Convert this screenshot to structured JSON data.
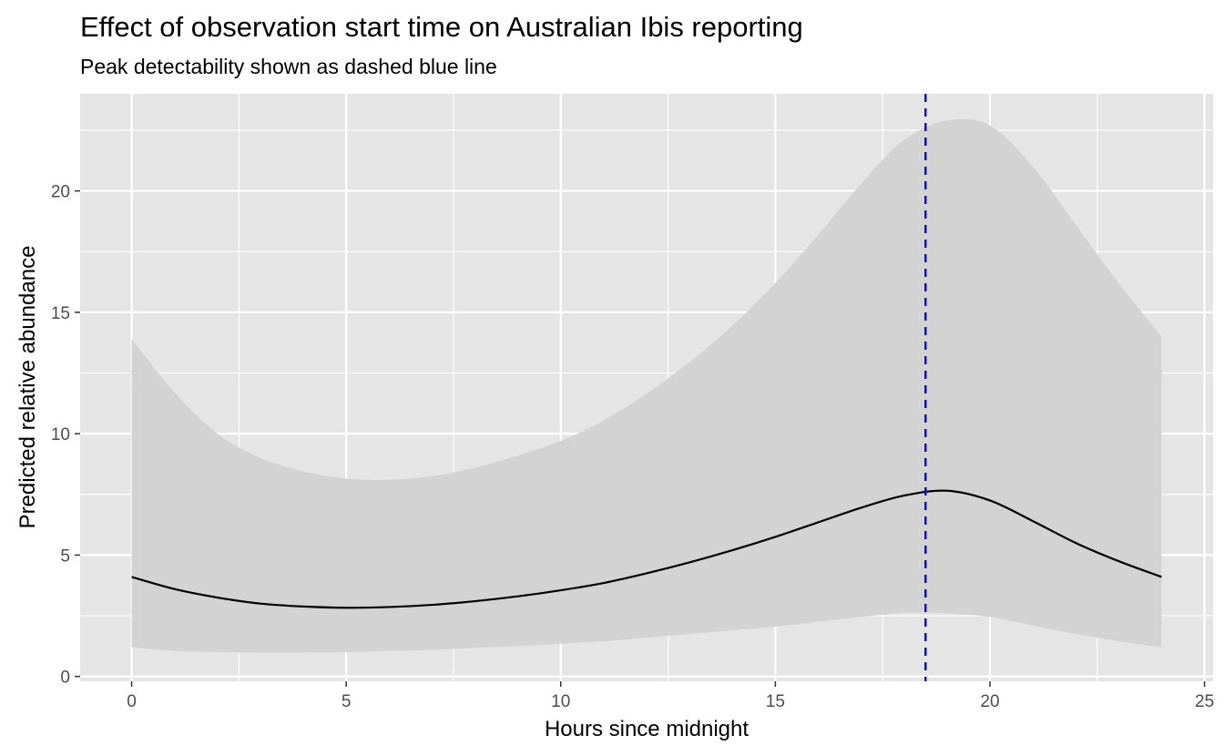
{
  "chart_data": {
    "type": "line",
    "title": "Effect of observation start time on Australian Ibis reporting",
    "subtitle": "Peak detectability shown as dashed blue line",
    "xlabel": "Hours since midnight",
    "ylabel": "Predicted relative abundance",
    "xlim": [
      -1.2,
      25.2
    ],
    "ylim": [
      -0.2,
      24.0
    ],
    "x_ticks": [
      0,
      5,
      10,
      15,
      20,
      25
    ],
    "y_ticks": [
      0,
      5,
      10,
      15,
      20
    ],
    "grid": true,
    "x": [
      0,
      1,
      2,
      3,
      4,
      5,
      6,
      7,
      8,
      9,
      10,
      11,
      12,
      13,
      14,
      15,
      16,
      17,
      18,
      19,
      20,
      21,
      22,
      23,
      24
    ],
    "series": [
      {
        "values": [
          4.1,
          3.6,
          3.25,
          3.0,
          2.88,
          2.83,
          2.86,
          2.95,
          3.1,
          3.3,
          3.55,
          3.85,
          4.25,
          4.7,
          5.2,
          5.75,
          6.35,
          6.95,
          7.45,
          7.65,
          7.25,
          6.4,
          5.5,
          4.75,
          4.1
        ],
        "lower": [
          1.2,
          1.05,
          1.0,
          0.98,
          0.98,
          1.0,
          1.05,
          1.1,
          1.18,
          1.25,
          1.35,
          1.45,
          1.6,
          1.75,
          1.9,
          2.05,
          2.25,
          2.45,
          2.62,
          2.6,
          2.45,
          2.1,
          1.75,
          1.45,
          1.2
        ],
        "upper": [
          13.9,
          11.7,
          10.0,
          9.0,
          8.45,
          8.15,
          8.1,
          8.25,
          8.6,
          9.1,
          9.7,
          10.55,
          11.65,
          12.95,
          14.45,
          16.2,
          18.2,
          20.3,
          22.1,
          22.9,
          22.7,
          21.0,
          18.6,
          16.2,
          14.0
        ],
        "color": "#000000",
        "band_color": "#d3d3d3"
      }
    ],
    "vline": {
      "x": 18.5,
      "color": "#0000ff"
    },
    "colors": {
      "panel": "#e5e5e5",
      "grid": "#ffffff"
    }
  }
}
